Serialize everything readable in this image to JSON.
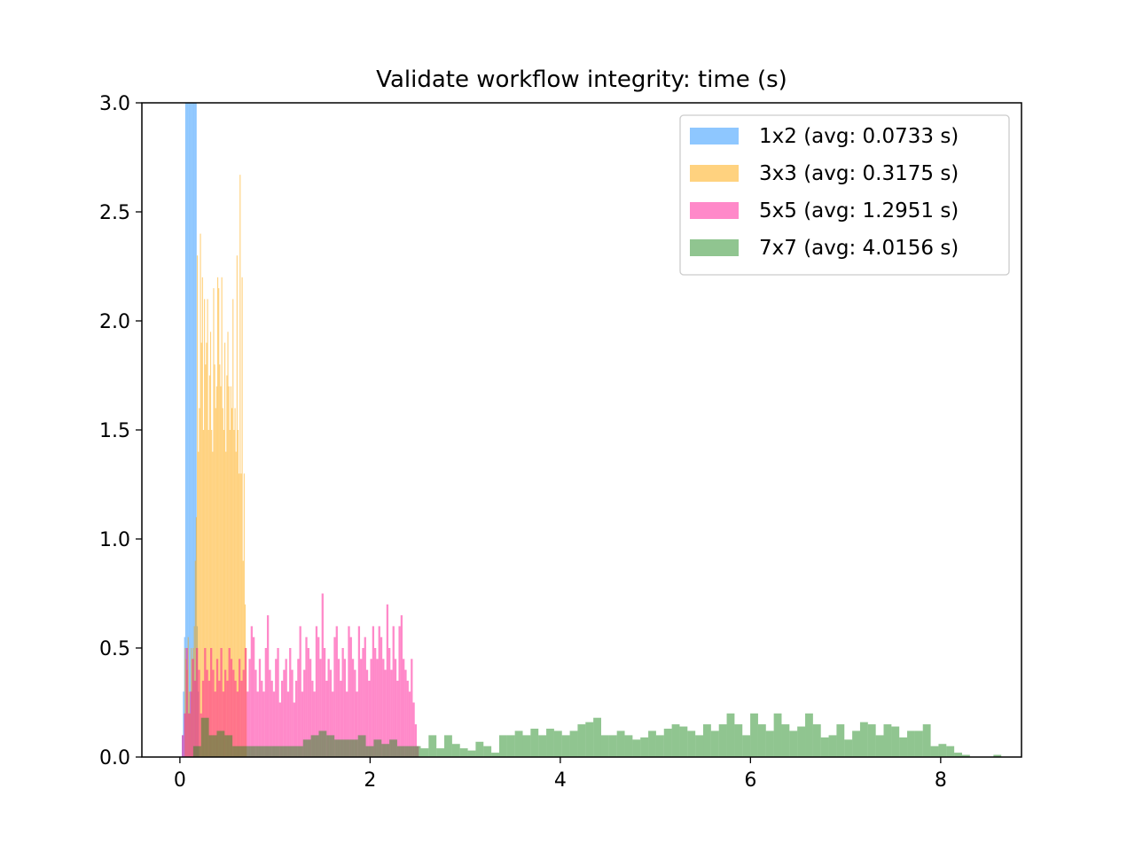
{
  "chart_data": {
    "type": "bar",
    "title": "Validate workflow integrity: time (s)",
    "xlabel": "",
    "ylabel": "",
    "xlim": [
      -0.4,
      8.85
    ],
    "ylim": [
      0,
      3.0
    ],
    "x_ticks": [
      0,
      2,
      4,
      6,
      8
    ],
    "x_tick_labels": [
      "0",
      "2",
      "4",
      "6",
      "8"
    ],
    "y_ticks": [
      0.0,
      0.5,
      1.0,
      1.5,
      2.0,
      2.5,
      3.0
    ],
    "y_tick_labels": [
      "0.0",
      "0.5",
      "1.0",
      "1.5",
      "2.0",
      "2.5",
      "3.0"
    ],
    "grid": false,
    "legend_position": "top-right",
    "series": [
      {
        "name": "1x2 (avg: 0.0733 s)",
        "color": "#1e90ff",
        "opacity": 0.5,
        "bin_start": 0.02,
        "bin_width": 0.012,
        "values": [
          0.1,
          0.3,
          0.55,
          3.0,
          3.0,
          3.0,
          3.0,
          3.0,
          3.0,
          3.0,
          3.0,
          3.0,
          3.0,
          0.6,
          0.3
        ]
      },
      {
        "name": "3x3 (avg: 0.3175 s)",
        "color": "#ffa500",
        "opacity": 0.5,
        "bin_start": 0.05,
        "bin_width": 0.0107,
        "values": [
          0.5,
          0.45,
          0.4,
          0.55,
          0.3,
          0.2,
          0.5,
          0.45,
          0.5,
          0.6,
          0.9,
          1.1,
          2.3,
          1.4,
          1.6,
          2.4,
          1.9,
          2.2,
          1.5,
          2.1,
          1.8,
          1.9,
          2.1,
          1.5,
          1.75,
          1.95,
          1.5,
          1.4,
          2.15,
          1.8,
          1.6,
          1.7,
          2.2,
          2.15,
          1.8,
          1.7,
          2.2,
          1.6,
          1.5,
          1.9,
          1.4,
          1.75,
          1.95,
          1.7,
          1.5,
          1.7,
          1.6,
          2.1,
          1.5,
          1.6,
          1.4,
          2.3,
          1.5,
          1.3,
          2.67,
          1.3,
          2.2,
          0.9,
          1.3,
          0.7,
          0.5
        ]
      },
      {
        "name": "5x5 (avg: 1.2951 s)",
        "color": "#ff1493",
        "opacity": 0.5,
        "bin_start": 0.02,
        "bin_width": 0.0213,
        "values": [
          0.1,
          0.2,
          0.5,
          0.2,
          0.3,
          0.45,
          0.35,
          0.5,
          0.4,
          0.2,
          0.35,
          0.5,
          0.4,
          0.35,
          0.5,
          0.4,
          0.3,
          0.45,
          0.35,
          0.5,
          0.3,
          0.4,
          0.35,
          0.5,
          0.45,
          0.4,
          0.35,
          0.3,
          0.45,
          0.35,
          0.4,
          0.5,
          0.3,
          0.45,
          0.6,
          0.55,
          0.4,
          0.3,
          0.45,
          0.35,
          0.3,
          0.5,
          0.65,
          0.4,
          0.35,
          0.3,
          0.45,
          0.5,
          0.25,
          0.35,
          0.4,
          0.45,
          0.3,
          0.5,
          0.4,
          0.25,
          0.35,
          0.45,
          0.6,
          0.3,
          0.4,
          0.55,
          0.5,
          0.45,
          0.35,
          0.3,
          0.6,
          0.55,
          0.45,
          0.75,
          0.5,
          0.35,
          0.45,
          0.4,
          0.3,
          0.55,
          0.6,
          0.45,
          0.35,
          0.5,
          0.45,
          0.3,
          0.6,
          0.55,
          0.45,
          0.4,
          0.3,
          0.6,
          0.45,
          0.5,
          0.55,
          0.4,
          0.35,
          0.45,
          0.6,
          0.5,
          0.45,
          0.6,
          0.55,
          0.45,
          0.4,
          0.7,
          0.5,
          0.4,
          0.6,
          0.45,
          0.35,
          0.6,
          0.65,
          0.45,
          0.4,
          0.35,
          0.3,
          0.45,
          0.25,
          0.15,
          0.05
        ]
      },
      {
        "name": "7x7 (avg: 4.0156 s)",
        "color": "#228b22",
        "opacity": 0.5,
        "bin_start": 0.14,
        "bin_width": 0.0825,
        "values": [
          0.05,
          0.18,
          0.1,
          0.12,
          0.1,
          0.05,
          0.05,
          0.05,
          0.05,
          0.05,
          0.05,
          0.05,
          0.05,
          0.05,
          0.08,
          0.1,
          0.12,
          0.1,
          0.08,
          0.08,
          0.08,
          0.1,
          0.05,
          0.08,
          0.06,
          0.08,
          0.05,
          0.05,
          0.05,
          0.04,
          0.1,
          0.04,
          0.1,
          0.06,
          0.04,
          0.03,
          0.07,
          0.05,
          0.02,
          0.1,
          0.1,
          0.12,
          0.1,
          0.13,
          0.1,
          0.13,
          0.12,
          0.1,
          0.12,
          0.15,
          0.16,
          0.18,
          0.1,
          0.1,
          0.12,
          0.1,
          0.08,
          0.09,
          0.12,
          0.1,
          0.13,
          0.15,
          0.14,
          0.12,
          0.1,
          0.15,
          0.12,
          0.15,
          0.2,
          0.15,
          0.1,
          0.2,
          0.15,
          0.12,
          0.2,
          0.15,
          0.12,
          0.14,
          0.2,
          0.15,
          0.09,
          0.1,
          0.15,
          0.08,
          0.12,
          0.16,
          0.15,
          0.1,
          0.15,
          0.14,
          0.09,
          0.12,
          0.12,
          0.15,
          0.05,
          0.06,
          0.05,
          0.02,
          0.01,
          0.0,
          0.0,
          0.0,
          0.01
        ]
      }
    ]
  }
}
